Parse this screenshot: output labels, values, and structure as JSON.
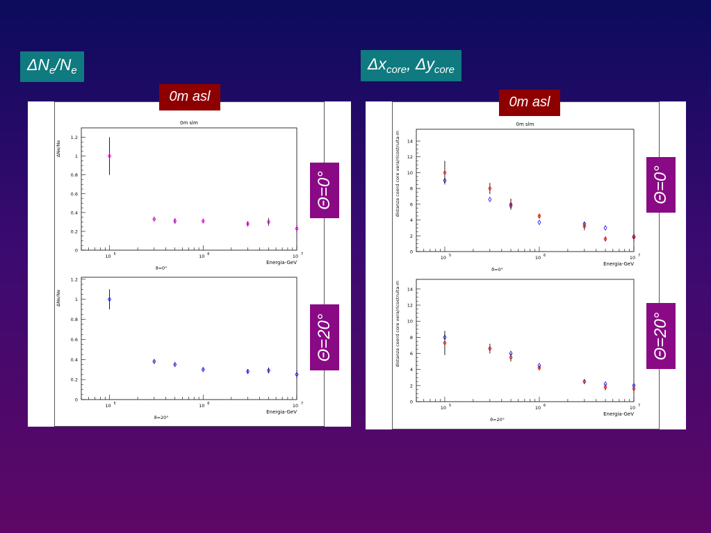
{
  "titles": {
    "left": {
      "base": "ΔN",
      "sub1": "e",
      "mid": "/N",
      "sub2": "e"
    },
    "right": {
      "a": "Δx",
      "a_sub": "core",
      "sep": ", Δy",
      "b_sub": "core"
    }
  },
  "labels": {
    "left_altitude": "0m asl",
    "right_altitude": "0m asl",
    "left_theta0": "Θ=0°",
    "left_theta20": "Θ=20°",
    "right_theta0": "Θ=0°",
    "right_theta20": "Θ=20°"
  },
  "colors": {
    "blue": "#2424ee",
    "red": "#ee2020",
    "magenta": "#ee00ee",
    "errbar": "#000000"
  },
  "chart_data": [
    {
      "id": "ne-0",
      "type": "scatter",
      "title": "0m slm",
      "xlabel": "Energia-GeV",
      "ylabel": "ΔNe/Ne",
      "bottom_label": "ϑ=0°",
      "xscale": "log",
      "xlim": [
        50000,
        10000000
      ],
      "ylim": [
        0,
        1.3
      ],
      "yticks": [
        0,
        0.2,
        0.4,
        0.6,
        0.8,
        1,
        1.2
      ],
      "ytick_labels": [
        "0",
        "0.2",
        "0.4",
        "0.6",
        "0.8",
        "1",
        "1.2"
      ],
      "xtick_labels": [
        "10^5",
        "10^6",
        "10^7"
      ],
      "series": [
        {
          "color": "magenta",
          "x": [
            100000,
            300000,
            500000,
            1000000,
            3000000,
            5000000,
            10000000
          ],
          "y": [
            1.0,
            0.33,
            0.31,
            0.31,
            0.28,
            0.3,
            0.23
          ],
          "err": [
            0.2,
            0.01,
            0.03,
            0.01,
            0.03,
            0.04,
            0.04
          ]
        }
      ]
    },
    {
      "id": "ne-20",
      "type": "scatter",
      "title": "",
      "xlabel": "Energia-GeV",
      "ylabel": "ΔNe/Ne",
      "bottom_label": "ϑ=20°",
      "xscale": "log",
      "xlim": [
        50000,
        10000000
      ],
      "ylim": [
        0,
        1.22
      ],
      "yticks": [
        0,
        0.2,
        0.4,
        0.6,
        0.8,
        1,
        1.2
      ],
      "ytick_labels": [
        "0",
        "0.2",
        "0.4",
        "0.6",
        "0.8",
        "1",
        "1.2"
      ],
      "xtick_labels": [
        "10^5",
        "10^6",
        "10^7"
      ],
      "series": [
        {
          "color": "blue",
          "x": [
            100000,
            300000,
            500000,
            1000000,
            3000000,
            5000000,
            10000000
          ],
          "y": [
            1.0,
            0.38,
            0.35,
            0.3,
            0.28,
            0.29,
            0.25
          ],
          "err": [
            0.1,
            0.01,
            0.01,
            0.01,
            0.02,
            0.03,
            0.04
          ]
        }
      ]
    },
    {
      "id": "core-0",
      "type": "scatter",
      "title": "0m slm",
      "xlabel": "Energia-GeV",
      "ylabel": "distanza coord core vera/ricostruita-m",
      "bottom_label": "ϑ=0°",
      "xscale": "log",
      "xlim": [
        50000,
        10000000
      ],
      "ylim": [
        0,
        15.5
      ],
      "yticks": [
        0,
        2,
        4,
        6,
        8,
        10,
        12,
        14
      ],
      "ytick_labels": [
        "0",
        "2",
        "4",
        "6",
        "8",
        "10",
        "12",
        "14"
      ],
      "xtick_labels": [
        "10^5",
        "10^6",
        "10^7"
      ],
      "series": [
        {
          "color": "blue",
          "x": [
            100000,
            300000,
            500000,
            1000000,
            3000000,
            5000000,
            10000000
          ],
          "y": [
            9.0,
            6.6,
            5.8,
            3.7,
            3.5,
            3.0,
            1.9
          ],
          "err": [
            0.0,
            0.0,
            0.0,
            0.0,
            0.0,
            0.0,
            0.0
          ]
        },
        {
          "color": "red",
          "x": [
            100000,
            300000,
            500000,
            1000000,
            3000000,
            5000000,
            10000000
          ],
          "y": [
            10.0,
            8.0,
            6.0,
            4.5,
            3.2,
            1.6,
            1.8
          ],
          "err": [
            1.5,
            0.7,
            0.7,
            0.3,
            0.5,
            0.3,
            0.5
          ]
        }
      ]
    },
    {
      "id": "core-20",
      "type": "scatter",
      "title": "",
      "xlabel": "Energia-GeV",
      "ylabel": "distanza coord core vera/ricostruita-m",
      "bottom_label": "ϑ=20°",
      "xscale": "log",
      "xlim": [
        50000,
        10000000
      ],
      "ylim": [
        0,
        15.2
      ],
      "yticks": [
        0,
        2,
        4,
        6,
        8,
        10,
        12,
        14
      ],
      "ytick_labels": [
        "0",
        "2",
        "4",
        "6",
        "8",
        "10",
        "12",
        "14"
      ],
      "xtick_labels": [
        "10^5",
        "10^6",
        "10^7"
      ],
      "series": [
        {
          "color": "blue",
          "x": [
            100000,
            300000,
            500000,
            1000000,
            3000000,
            5000000,
            10000000
          ],
          "y": [
            8.0,
            6.6,
            6.0,
            4.5,
            2.5,
            2.2,
            2.0
          ],
          "err": [
            0.0,
            0.0,
            0.0,
            0.0,
            0.0,
            0.0,
            0.0
          ]
        },
        {
          "color": "red",
          "x": [
            100000,
            300000,
            500000,
            1000000,
            3000000,
            5000000,
            10000000
          ],
          "y": [
            7.3,
            6.6,
            5.5,
            4.2,
            2.5,
            1.8,
            1.6
          ],
          "err": [
            1.5,
            0.6,
            0.5,
            0.3,
            0.3,
            0.4,
            0.5
          ]
        }
      ]
    }
  ]
}
